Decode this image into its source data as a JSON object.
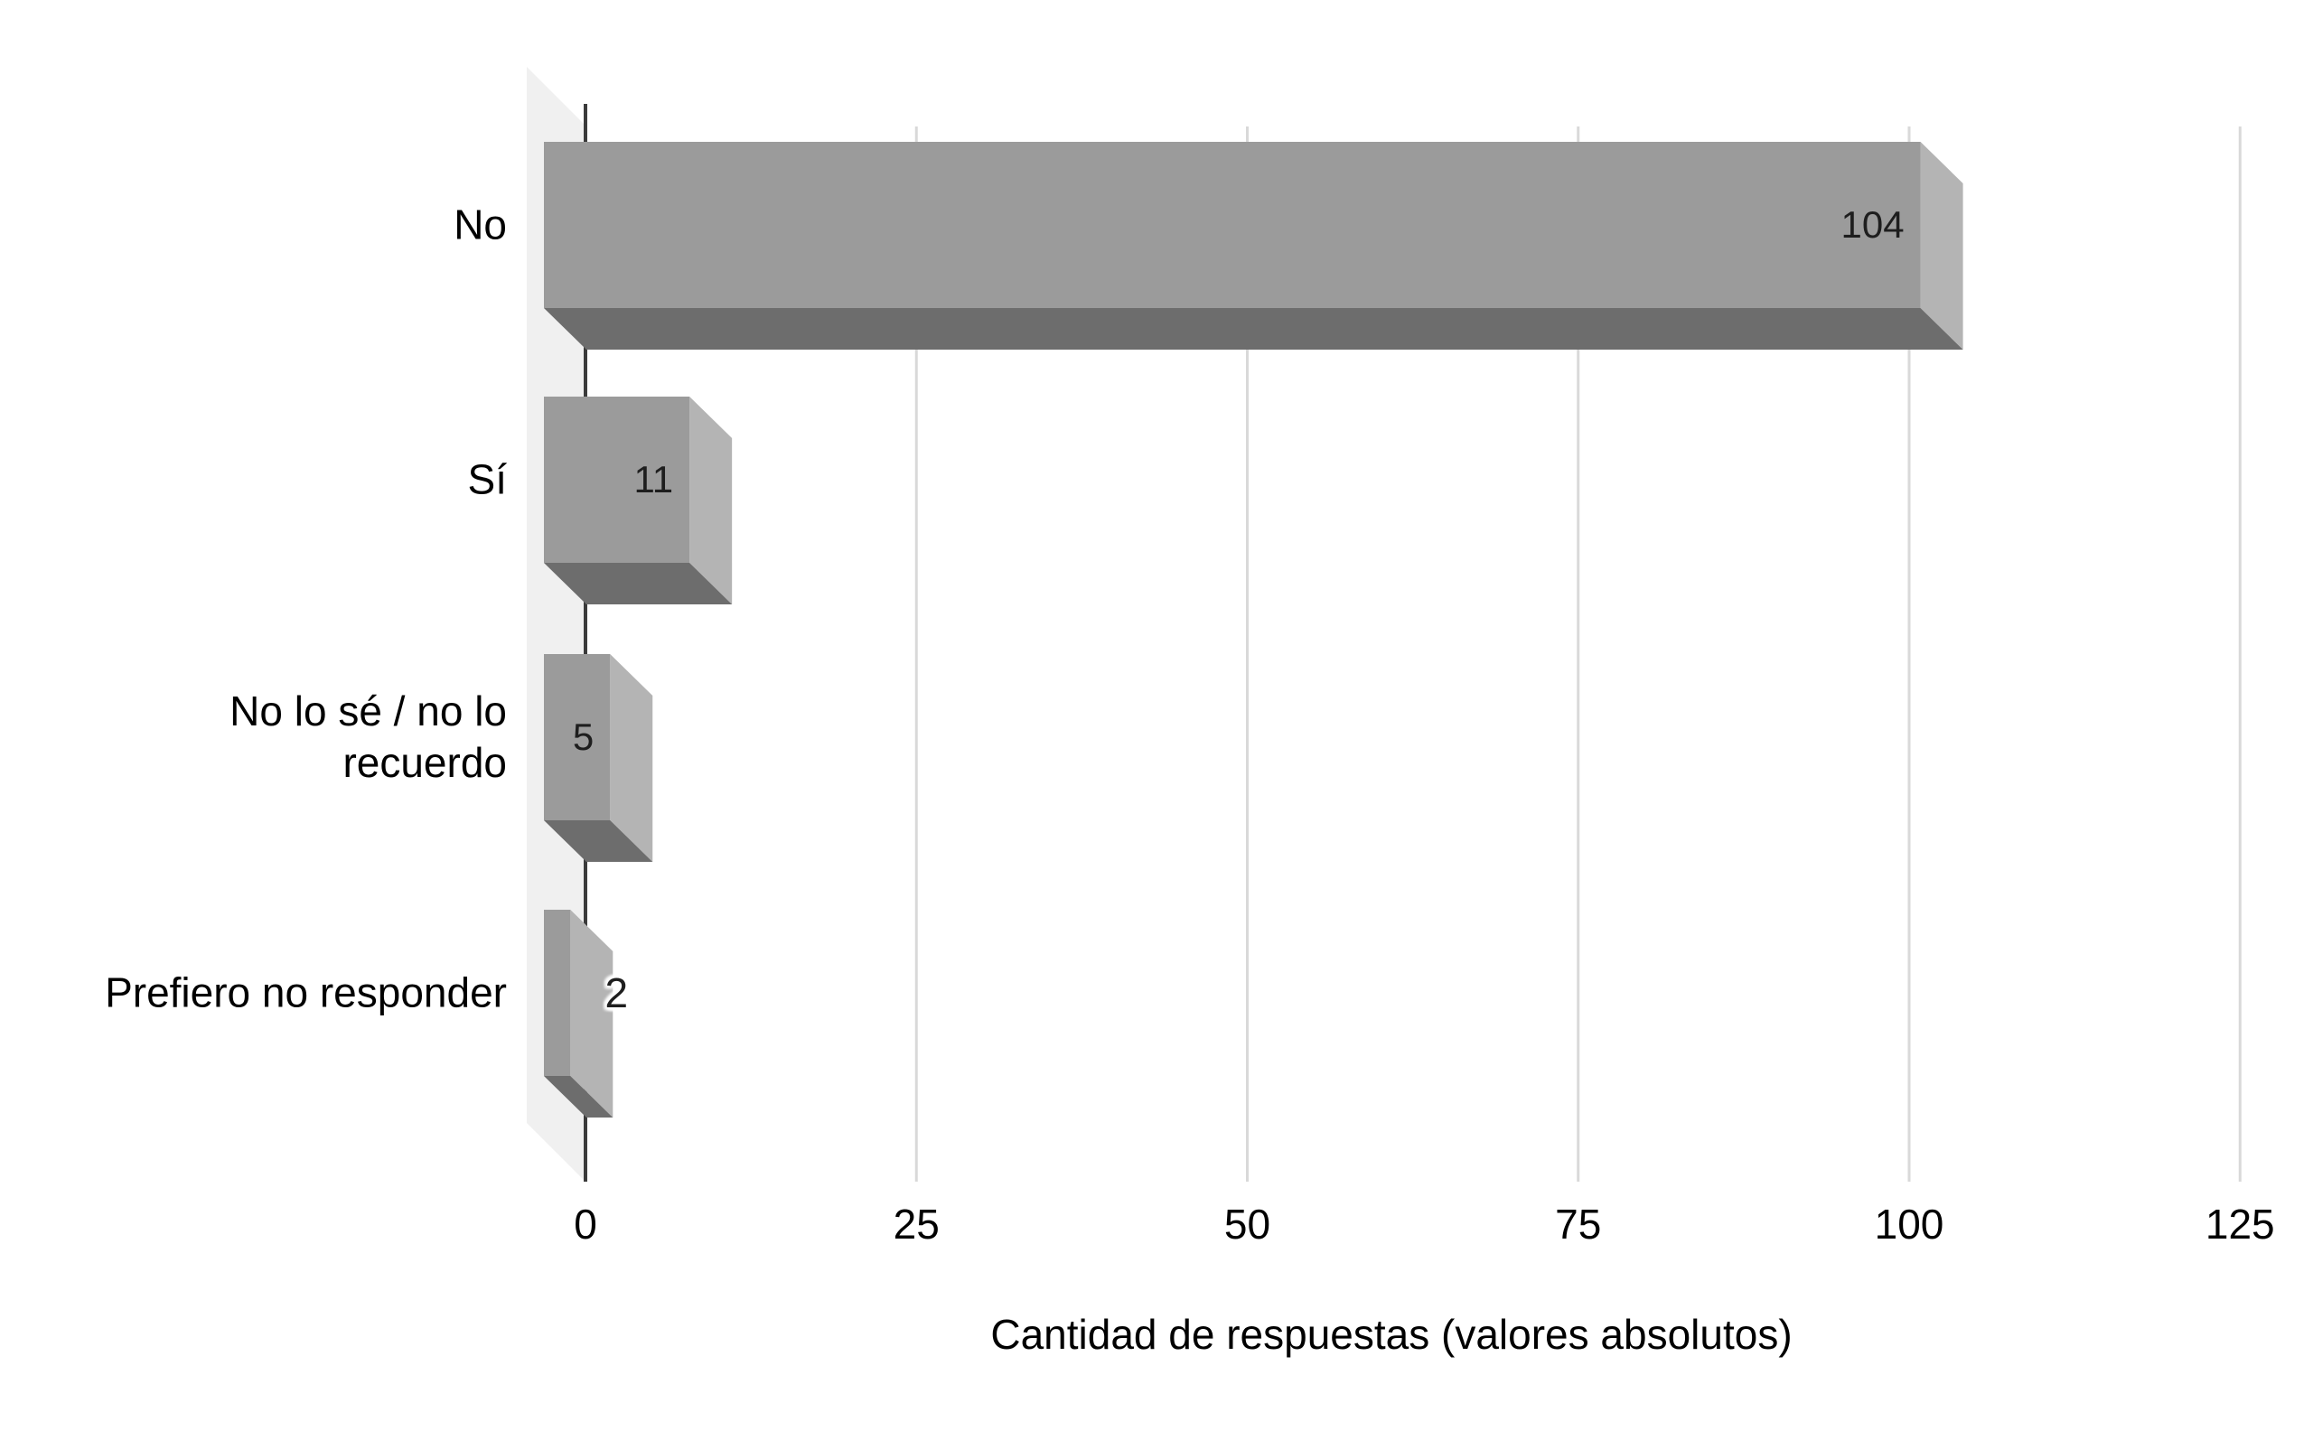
{
  "page": {
    "background": "#ffffff"
  },
  "chart_data": {
    "type": "bar",
    "orientation": "horizontal",
    "style_3d": true,
    "categories": [
      "No",
      "Sí",
      "No lo sé / no lo recuerdo",
      "Prefiero no responder"
    ],
    "category_display_lines": [
      [
        "No"
      ],
      [
        "Sí"
      ],
      [
        "No lo sé / no lo",
        "recuerdo"
      ],
      [
        "Prefiero no responder"
      ]
    ],
    "values": [
      104,
      11,
      5,
      2
    ],
    "value_labels": [
      "104",
      "11",
      "5",
      "2"
    ],
    "xlabel": "Cantidad de respuestas (valores absolutos)",
    "x_ticks": [
      0,
      25,
      50,
      75,
      100,
      125
    ],
    "x_tick_labels": [
      "0",
      "25",
      "50",
      "75",
      "100",
      "125"
    ],
    "xlim": [
      0,
      125
    ],
    "grid": true,
    "legend_position": "none",
    "colors": {
      "bar_front": "#9b9b9b",
      "bar_side": "#b4b4b4",
      "bar_bottom": "#6d6d6d",
      "wall": "#f0f0f0",
      "gridline": "#d9d9d9",
      "axis_line": "#3b3b3b",
      "text": "#000000",
      "value_label": "#1e1e1e"
    }
  }
}
